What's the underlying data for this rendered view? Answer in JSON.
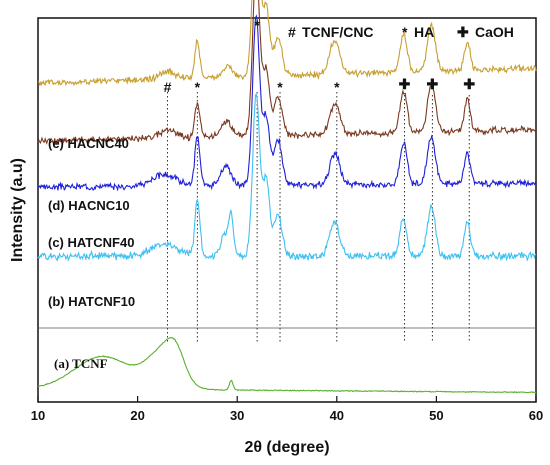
{
  "chart_data": {
    "type": "line",
    "xlabel": "2θ (degree)",
    "ylabel": "Intensity (a.u)",
    "xlim": [
      10,
      60
    ],
    "xticks": [
      10,
      20,
      30,
      40,
      50,
      60
    ],
    "grid": false,
    "legend": {
      "placement": "top-right",
      "entries": [
        {
          "symbol": "#",
          "label": "TCNF/CNC"
        },
        {
          "symbol": "*",
          "label": "HA"
        },
        {
          "symbol": "✚",
          "label": "CaOH"
        }
      ]
    },
    "peak_markers": [
      {
        "x": 23.0,
        "symbol": "#"
      },
      {
        "x": 26.0,
        "symbol": "*"
      },
      {
        "x": 32.0,
        "symbol": "*"
      },
      {
        "x": 34.3,
        "symbol": "*"
      },
      {
        "x": 40.0,
        "symbol": "*"
      },
      {
        "x": 46.8,
        "symbol": "✚"
      },
      {
        "x": 49.6,
        "symbol": "✚"
      },
      {
        "x": 53.3,
        "symbol": "✚"
      }
    ],
    "series": [
      {
        "name": "(e) HACNC40",
        "color": "#c8a030",
        "baseline": 0.83,
        "noise": 0.01,
        "seed": 5,
        "peaks": [
          [
            23,
            0.02,
            0.8
          ],
          [
            26,
            0.1,
            0.25
          ],
          [
            29,
            0.03,
            0.5
          ],
          [
            31.9,
            0.44,
            0.35
          ],
          [
            32.9,
            0.18,
            0.35
          ],
          [
            34.1,
            0.1,
            0.4
          ],
          [
            39.8,
            0.09,
            0.5
          ],
          [
            46.7,
            0.1,
            0.35
          ],
          [
            49.5,
            0.12,
            0.4
          ],
          [
            53.1,
            0.07,
            0.3
          ]
        ],
        "slope": 0.0008
      },
      {
        "name": "(d) HACNC10",
        "color": "#7a3a22",
        "baseline": 0.68,
        "noise": 0.01,
        "seed": 4,
        "peaks": [
          [
            23,
            0.02,
            0.8
          ],
          [
            26,
            0.09,
            0.25
          ],
          [
            28.9,
            0.04,
            0.5
          ],
          [
            31.9,
            0.44,
            0.35
          ],
          [
            32.9,
            0.17,
            0.35
          ],
          [
            34.1,
            0.1,
            0.4
          ],
          [
            39.8,
            0.08,
            0.5
          ],
          [
            46.7,
            0.11,
            0.35
          ],
          [
            49.5,
            0.12,
            0.4
          ],
          [
            53.1,
            0.08,
            0.3
          ]
        ],
        "slope": 0.0006
      },
      {
        "name": "(c) HATCNF40",
        "color": "#2020d8",
        "baseline": 0.56,
        "noise": 0.01,
        "seed": 3,
        "peaks": [
          [
            22.7,
            0.03,
            1.2
          ],
          [
            26,
            0.13,
            0.25
          ],
          [
            28.9,
            0.05,
            0.5
          ],
          [
            31.9,
            0.44,
            0.35
          ],
          [
            32.9,
            0.18,
            0.35
          ],
          [
            34.1,
            0.12,
            0.4
          ],
          [
            39.8,
            0.08,
            0.5
          ],
          [
            46.7,
            0.11,
            0.35
          ],
          [
            49.5,
            0.12,
            0.4
          ],
          [
            53.1,
            0.08,
            0.3
          ]
        ],
        "slope": 0.0002
      },
      {
        "name": "(b) HATCNF10",
        "color": "#40c0f0",
        "baseline": 0.38,
        "noise": 0.012,
        "seed": 2,
        "peaks": [
          [
            22.7,
            0.03,
            1.3
          ],
          [
            26,
            0.15,
            0.25
          ],
          [
            28.9,
            0.06,
            0.5
          ],
          [
            29.4,
            0.08,
            0.2
          ],
          [
            31.9,
            0.42,
            0.35
          ],
          [
            32.9,
            0.2,
            0.35
          ],
          [
            34.1,
            0.11,
            0.4
          ],
          [
            39.8,
            0.09,
            0.5
          ],
          [
            46.7,
            0.1,
            0.35
          ],
          [
            49.5,
            0.13,
            0.4
          ],
          [
            53.1,
            0.09,
            0.3
          ]
        ],
        "slope": 0.0
      },
      {
        "name": "(a) TCNF",
        "color": "#5cb030",
        "baseline": 0.035,
        "noise": 0.0015,
        "seed": 1,
        "peaks": [
          [
            16.5,
            0.085,
            2.8
          ],
          [
            22.5,
            0.09,
            1.6
          ],
          [
            23.8,
            0.06,
            0.9
          ],
          [
            29.4,
            0.025,
            0.18
          ]
        ],
        "slope": -0.0002
      }
    ]
  }
}
